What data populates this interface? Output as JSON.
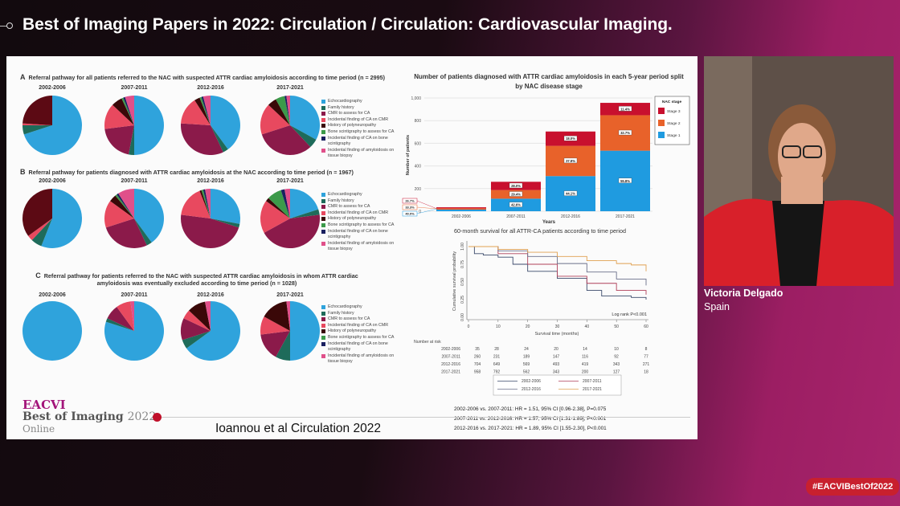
{
  "header": {
    "title": "Best of Imaging Papers in 2022: Circulation / Circulation: Cardiovascular Imaging."
  },
  "speaker": {
    "name": "Victoria Delgado",
    "country": "Spain"
  },
  "hashtag": "#EACVIBestOf2022",
  "logo": {
    "line1": "EACVI",
    "line2_bold": "Best of Imaging",
    "line2_year": "2022",
    "line3": "Online"
  },
  "citation": "Ioannou et al Circulation 2022",
  "colors": {
    "accent": "#a3157a",
    "slide_bg": "#fbfbfb"
  },
  "pie_legend": [
    {
      "label": "Echocardiography",
      "color": "#2fa3dc"
    },
    {
      "label": "Family history",
      "color": "#1e6b5a"
    },
    {
      "label": "CMR to assess for CA",
      "color": "#8b1a4a"
    },
    {
      "label": "Incidental finding of CA on CMR",
      "color": "#e8495f"
    },
    {
      "label": "History of polyneuropathy",
      "color": "#3a0808"
    },
    {
      "label": "Bone scintigraphy to assess for CA",
      "color": "#3c9a4a"
    },
    {
      "label": "Incidental finding of CA on bone scintigraphy",
      "color": "#1a2060"
    },
    {
      "label": "Incidental finding of amyloidosis on tissue biopsy",
      "color": "#e0508a"
    }
  ],
  "chart_data": [
    {
      "type": "pie",
      "panel": "A",
      "title": "Referral pathway for all patients referred to the NAC with suspected ATTR cardiac amyloidosis according to time period (n = 2995)",
      "pies": [
        {
          "label": "2002-2006",
          "values": [
            0.7,
            0.05,
            0,
            0.01,
            0.24,
            0,
            0,
            0
          ]
        },
        {
          "label": "2007-2011",
          "values": [
            0.5,
            0.03,
            0.2,
            0.14,
            0.06,
            0.01,
            0.01,
            0.05
          ]
        },
        {
          "label": "2012-2016",
          "values": [
            0.4,
            0.03,
            0.33,
            0.15,
            0.03,
            0.01,
            0.01,
            0.04
          ]
        },
        {
          "label": "2017-2021",
          "values": [
            0.33,
            0.05,
            0.32,
            0.17,
            0.05,
            0.05,
            0.01,
            0.02
          ]
        }
      ]
    },
    {
      "type": "pie",
      "panel": "B",
      "title": "Referral pathway for patients diagnosed with ATTR cardiac amyloidosis at the NAC according to time period (n = 1967)",
      "pies": [
        {
          "label": "2002-2006",
          "values": [
            0.56,
            0.06,
            0,
            0.03,
            0.35,
            0,
            0,
            0
          ]
        },
        {
          "label": "2007-2011",
          "values": [
            0.4,
            0.03,
            0.27,
            0.15,
            0.04,
            0.01,
            0.01,
            0.09
          ]
        },
        {
          "label": "2012-2016",
          "values": [
            0.28,
            0.02,
            0.47,
            0.17,
            0.01,
            0.01,
            0.01,
            0.03
          ]
        },
        {
          "label": "2017-2021",
          "values": [
            0.2,
            0.03,
            0.44,
            0.18,
            0.02,
            0.08,
            0.02,
            0.03
          ]
        }
      ]
    },
    {
      "type": "pie",
      "panel": "C",
      "title": "Referral pathway for patients referred to the NAC with suspected ATTR cardiac amyloidosis in whom ATTR cardiac amyloidosis was eventually excluded according to time period (n = 1028)",
      "pies": [
        {
          "label": "2002-2006",
          "values": [
            1,
            0,
            0,
            0,
            0,
            0,
            0,
            0
          ]
        },
        {
          "label": "2007-2011",
          "values": [
            0.8,
            0.02,
            0.08,
            0.08,
            0,
            0,
            0,
            0.02
          ]
        },
        {
          "label": "2012-2016",
          "values": [
            0.65,
            0.05,
            0.12,
            0.05,
            0.1,
            0,
            0,
            0.03
          ]
        },
        {
          "label": "2017-2021",
          "values": [
            0.5,
            0.08,
            0.15,
            0.1,
            0.15,
            0,
            0,
            0.02
          ]
        }
      ]
    },
    {
      "type": "bar",
      "stacked": true,
      "title": "Number of patients diagnosed with ATTR cardiac amyloidosis in each 5-year period split by NAC disease stage",
      "xlabel": "Years",
      "ylabel": "Number of patients",
      "ylim": [
        0,
        1000
      ],
      "yticks": [
        "0",
        "200",
        "400",
        "600",
        "800",
        "1,000"
      ],
      "categories": [
        "2002-2006",
        "2007-2011",
        "2012-2016",
        "2017-2021"
      ],
      "totals": [
        35,
        260,
        704,
        958
      ],
      "legend_title": "NAC stage",
      "series": [
        {
          "name": "Stage 1",
          "color": "#1f9be0",
          "percent": [
            "40.0%",
            "42.6%",
            "44.1%",
            "55.8%"
          ],
          "share": [
            0.4,
            0.426,
            0.441,
            0.558
          ]
        },
        {
          "name": "Stage 2",
          "color": "#e8622a",
          "percent": [
            "33.3%",
            "29.4%",
            "37.9%",
            "32.7%"
          ],
          "share": [
            0.333,
            0.294,
            0.379,
            0.327
          ]
        },
        {
          "name": "Stage 3",
          "color": "#c8102e",
          "percent": [
            "26.7%",
            "28.0%",
            "18.0%",
            "11.4%"
          ],
          "share": [
            0.267,
            0.28,
            0.18,
            0.114
          ]
        }
      ]
    },
    {
      "type": "line",
      "title": "60-month survival for all ATTR-CA patients according to time period",
      "xlabel": "Survival time (months)",
      "ylabel": "Cumulative survival probability",
      "xlim": [
        0,
        60
      ],
      "ylim": [
        0,
        1
      ],
      "xticks": [
        "0",
        "10",
        "20",
        "30",
        "40",
        "50",
        "60"
      ],
      "yticks": [
        "0.00",
        "0.25",
        "0.50",
        "0.75",
        "1.00"
      ],
      "annotation": "Log rank P<0.001",
      "series": [
        {
          "name": "2002-2006",
          "color": "#3b4a6b",
          "x": [
            0,
            2,
            5,
            10,
            15,
            20,
            30,
            40,
            45,
            50,
            55,
            60
          ],
          "y": [
            1,
            0.9,
            0.88,
            0.85,
            0.75,
            0.65,
            0.55,
            0.38,
            0.3,
            0.3,
            0.28,
            0.25
          ]
        },
        {
          "name": "2007-2011",
          "color": "#b0405a",
          "x": [
            0,
            10,
            20,
            30,
            40,
            50,
            60
          ],
          "y": [
            1,
            0.9,
            0.75,
            0.58,
            0.48,
            0.38,
            0.32
          ]
        },
        {
          "name": "2012-2016",
          "color": "#6a6f8a",
          "x": [
            0,
            10,
            20,
            30,
            40,
            50,
            60
          ],
          "y": [
            1,
            0.94,
            0.86,
            0.76,
            0.64,
            0.54,
            0.45
          ]
        },
        {
          "name": "2017-2021",
          "color": "#e0a050",
          "x": [
            0,
            10,
            20,
            30,
            40,
            50,
            55,
            60
          ],
          "y": [
            1,
            0.96,
            0.92,
            0.86,
            0.8,
            0.76,
            0.74,
            0.65
          ]
        }
      ],
      "risk_table": {
        "title": "Number at risk",
        "rows": [
          {
            "label": "2002-2006",
            "values": [
              "35",
              "28",
              "24",
              "20",
              "14",
              "10",
              "8"
            ]
          },
          {
            "label": "2007-2011",
            "values": [
              "260",
              "231",
              "189",
              "147",
              "116",
              "92",
              "77"
            ]
          },
          {
            "label": "2012-2016",
            "values": [
              "704",
              "649",
              "569",
              "493",
              "419",
              "343",
              "271"
            ]
          },
          {
            "label": "2017-2021",
            "values": [
              "958",
              "792",
              "562",
              "343",
              "200",
              "127",
              "18"
            ]
          }
        ]
      },
      "hr_lines": [
        "2002-2006 vs. 2007-2011: HR = 1.51, 95% CI [0.96-2.38], P=0.075",
        "2007-2011 vs. 2012-2016: HR = 1.57, 95% CI [1.31-1.89], P<0.001",
        "2012-2016 vs. 2017-2021: HR = 1.89, 95% CI [1.55-2.30], P<0.001"
      ]
    }
  ]
}
